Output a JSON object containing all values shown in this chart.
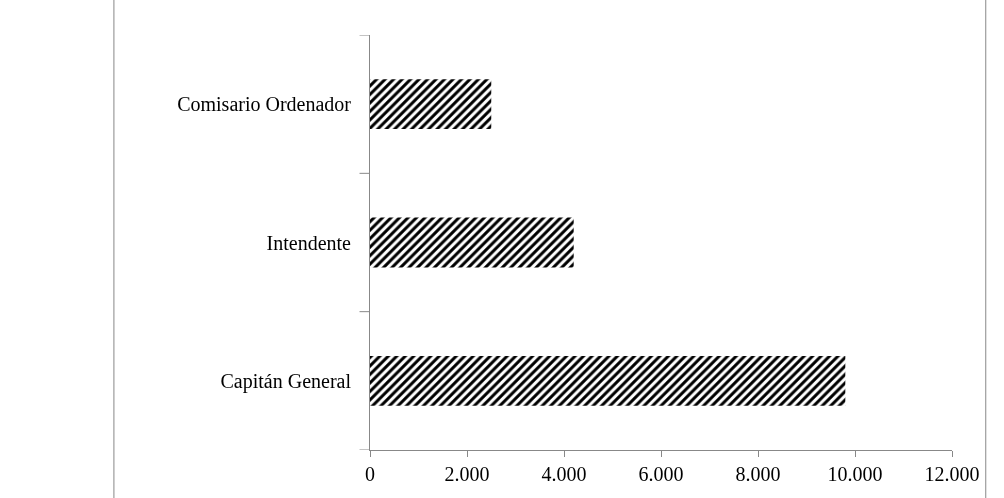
{
  "chart_data": {
    "type": "bar",
    "orientation": "horizontal",
    "categories": [
      "Comisario Ordenador",
      "Intendente",
      "Capitán General"
    ],
    "values": [
      2500,
      4200,
      9800
    ],
    "color": "#000000",
    "xlim": [
      0,
      12000
    ],
    "xticks": [
      0,
      {
        "value": 2000,
        "label": "2.000"
      },
      {
        "value": 4000,
        "label": "4.000"
      },
      {
        "value": 6000,
        "label": "6.000"
      },
      {
        "value": 8000,
        "label": "8.000"
      },
      {
        "value": 10000,
        "label": "10.000"
      },
      {
        "value": 12000,
        "label": "12.000"
      }
    ],
    "legend": false
  }
}
